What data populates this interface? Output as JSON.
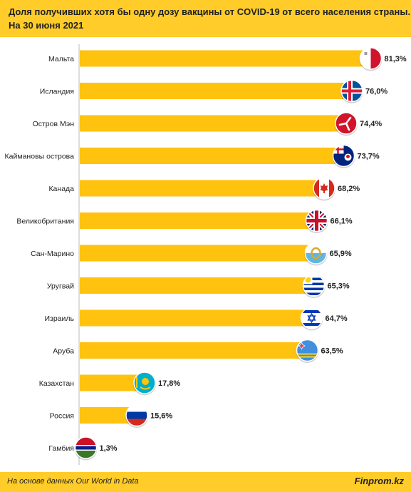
{
  "header": {
    "title_line1": "Доля получивших хотя бы одну дозу вакцины от COVID-19 от всего населения страны.",
    "title_line2": "На 30 июня 2021"
  },
  "footer": {
    "source": "На основе данных  Our World in Data",
    "brand": "Finprom.kz"
  },
  "colors": {
    "bar": "#ffc20e",
    "header": "#ffcc29"
  },
  "chart_data": {
    "type": "bar",
    "orientation": "horizontal",
    "categories": [
      "Мальта",
      "Исландия",
      "Остров Мэн",
      "Каймановы острова",
      "Канада",
      "Великобритания",
      "Сан-Марино",
      "Уругвай",
      "Израиль",
      "Аруба",
      "Казахстан",
      "Россия",
      "Гамбия"
    ],
    "values": [
      81.3,
      76.0,
      74.4,
      73.7,
      68.2,
      66.1,
      65.9,
      65.3,
      64.7,
      63.5,
      17.8,
      15.6,
      1.3
    ],
    "labels": [
      "81,3%",
      "76,0%",
      "74,4%",
      "73,7%",
      "68,2%",
      "66,1%",
      "65,9%",
      "65,3%",
      "64,7%",
      "63,5%",
      "17,8%",
      "15,6%",
      "1,3%"
    ],
    "flags": [
      "malta-flag-icon",
      "iceland-flag-icon",
      "isle-of-man-flag-icon",
      "cayman-islands-flag-icon",
      "canada-flag-icon",
      "uk-flag-icon",
      "san-marino-flag-icon",
      "uruguay-flag-icon",
      "israel-flag-icon",
      "aruba-flag-icon",
      "kazakhstan-flag-icon",
      "russia-flag-icon",
      "gambia-flag-icon"
    ],
    "title": "Доля получивших хотя бы одну дозу вакцины от COVID-19 от всего населения страны.",
    "xlabel": "",
    "ylabel": "",
    "xlim": [
      0,
      100
    ]
  }
}
